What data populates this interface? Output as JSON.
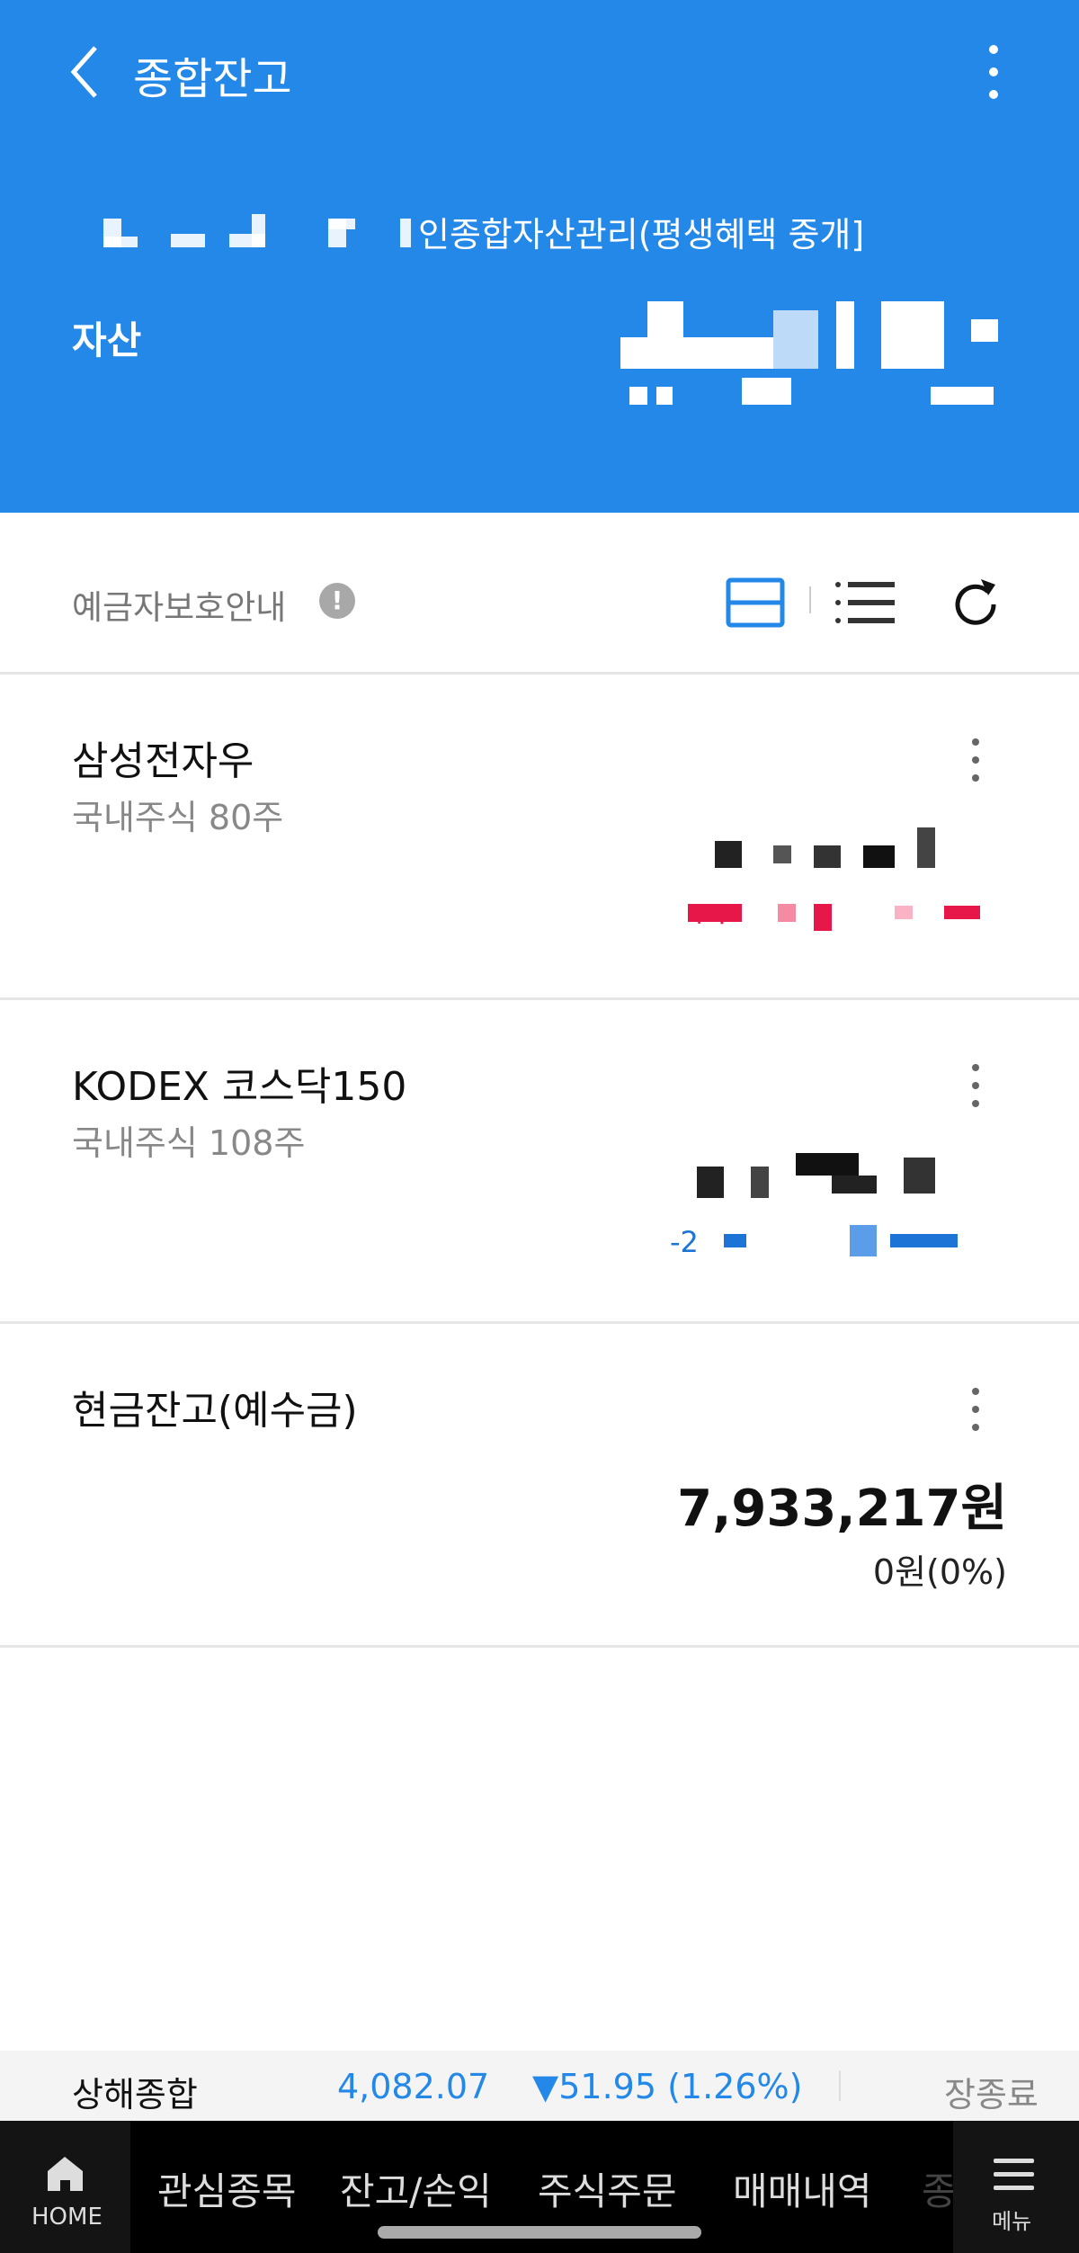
{
  "header": {
    "title": "종합잔고",
    "account_name_suffix": "인종합자산관리(평생혜택 중개]",
    "asset_label": "자산",
    "bg_color": "#2388e8"
  },
  "toolbar": {
    "deposit_protection": "예금자보호안내",
    "info_icon": "!"
  },
  "holdings": [
    {
      "name": "삼성전자우",
      "sub": "국내주식 80주",
      "change_color": "#e8174a",
      "change_prefix": "+4"
    },
    {
      "name": "KODEX 코스닥150",
      "sub": "국내주식 108주",
      "change_color": "#1b74d6",
      "change_prefix": "-2"
    }
  ],
  "cash": {
    "name": "현금잔고(예수금)",
    "value": "7,933,217원",
    "sub": "0원(0%)"
  },
  "market": {
    "index_name": "상해종합",
    "value": "4,082.07",
    "change": "▼51.95 (1.26%)",
    "status": "장종료",
    "color": "#2388e8"
  },
  "nav": {
    "home": "HOME",
    "tabs": [
      "관심종목",
      "잔고/손익",
      "주식주문",
      "매매내역",
      "종"
    ],
    "menu": "메뉴"
  }
}
